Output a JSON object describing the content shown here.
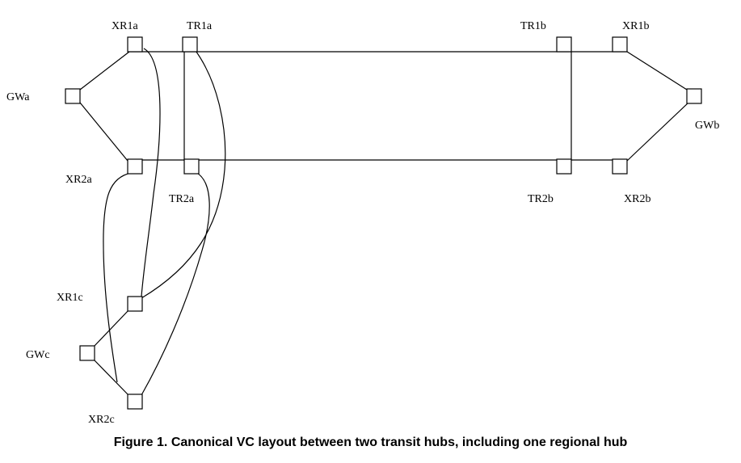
{
  "figure": {
    "caption": "Figure 1.  Canonical VC layout between two transit hubs, including one regional hub"
  },
  "nodes": {
    "XR1a": "XR1a",
    "TR1a": "TR1a",
    "TR1b": "TR1b",
    "XR1b": "XR1b",
    "GWa": "GWa",
    "GWb": "GWb",
    "XR2a": "XR2a",
    "TR2a": "TR2a",
    "TR2b": "TR2b",
    "XR2b": "XR2b",
    "XR1c": "XR1c",
    "GWc": "GWc",
    "XR2c": "XR2c"
  },
  "links": [
    [
      "GWa",
      "XR1a"
    ],
    [
      "GWa",
      "XR2a"
    ],
    [
      "XR1a",
      "XR1b"
    ],
    [
      "XR2a",
      "XR2b"
    ],
    [
      "XR1b",
      "GWb"
    ],
    [
      "XR2b",
      "GWb"
    ],
    [
      "TR1a",
      "TR2a"
    ],
    [
      "TR1b",
      "TR2b"
    ],
    [
      "XR1a",
      "XR1c"
    ],
    [
      "TR1a",
      "XR1c"
    ],
    [
      "XR2a",
      "XR2c"
    ],
    [
      "TR2a",
      "XR2c"
    ],
    [
      "GWc",
      "XR1c"
    ],
    [
      "GWc",
      "XR2c"
    ]
  ]
}
